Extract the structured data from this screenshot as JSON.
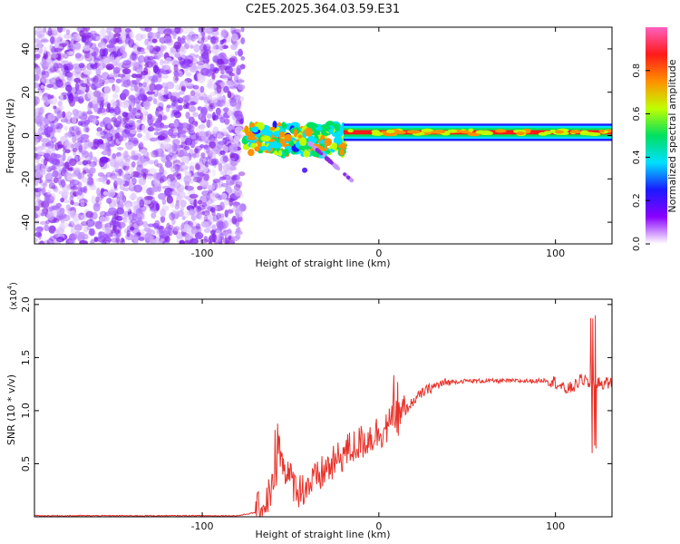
{
  "chart_data": [
    {
      "type": "heatmap",
      "title": "C2E5.2025.364.03.59.E31",
      "xlabel": "Height of straight line (km)",
      "ylabel": "Frequency (Hz)",
      "xlim": [
        -195,
        132
      ],
      "ylim": [
        -50,
        50
      ],
      "x_ticks": [
        -100,
        0,
        100
      ],
      "x_tick_labels": [
        "-100",
        "0",
        "100"
      ],
      "y_ticks": [
        -40,
        -20,
        0,
        20,
        40
      ],
      "y_tick_labels": [
        "-40",
        "-20",
        "0",
        "20",
        "40"
      ],
      "noise_region_x": [
        -195,
        -77
      ],
      "transition_region_x": [
        -77,
        -20
      ],
      "stable_band_x": [
        -20,
        132
      ],
      "stable_band_frequency_hz": 1.5,
      "colorbar": {
        "label": "Normalized spectral amplitude",
        "range": [
          0,
          1
        ],
        "ticks": [
          0,
          0.2,
          0.4,
          0.6,
          0.8
        ],
        "tick_labels": [
          "0.0",
          "0.2",
          "0.4",
          "0.6",
          "0.8"
        ],
        "colors": [
          "#ffffff",
          "#8a00ff",
          "#1a1aff",
          "#00e0ff",
          "#00e060",
          "#c0ff00",
          "#ff9000",
          "#ff1a1a",
          "#ff60c0"
        ]
      }
    },
    {
      "type": "line",
      "xlabel": "Height of straight line (km)",
      "ylabel": "SNR (10 * v/v)",
      "scale_label": "(x10",
      "scale_exp": "4",
      "scale_close": ")",
      "xlim": [
        -195,
        132
      ],
      "ylim": [
        0,
        2.05
      ],
      "x_ticks": [
        -100,
        0,
        100
      ],
      "x_tick_labels": [
        "-100",
        "0",
        "100"
      ],
      "y_ticks": [
        0.5,
        1.0,
        1.5,
        2.0
      ],
      "y_tick_labels": [
        "0.5",
        "1.0",
        "1.5",
        "2.0"
      ],
      "series": [
        {
          "name": "SNR",
          "color": "#e8322a",
          "x": [
            -195,
            -120,
            -80,
            -70,
            -65,
            -60,
            -55,
            -50,
            -45,
            -40,
            -35,
            -30,
            -25,
            -20,
            -15,
            -10,
            -5,
            0,
            5,
            10,
            15,
            20,
            25,
            30,
            35,
            40,
            50,
            60,
            70,
            80,
            90,
            95,
            100,
            105,
            110,
            115,
            120,
            125,
            132
          ],
          "y": [
            0.01,
            0.01,
            0.01,
            0.04,
            0.1,
            0.3,
            0.55,
            0.35,
            0.25,
            0.3,
            0.35,
            0.45,
            0.5,
            0.6,
            0.65,
            0.7,
            0.75,
            0.8,
            0.85,
            0.92,
            1.0,
            1.1,
            1.17,
            1.22,
            1.25,
            1.27,
            1.28,
            1.28,
            1.28,
            1.28,
            1.28,
            1.29,
            1.27,
            1.2,
            1.22,
            1.3,
            1.25,
            1.26,
            1.26
          ]
        }
      ]
    }
  ]
}
